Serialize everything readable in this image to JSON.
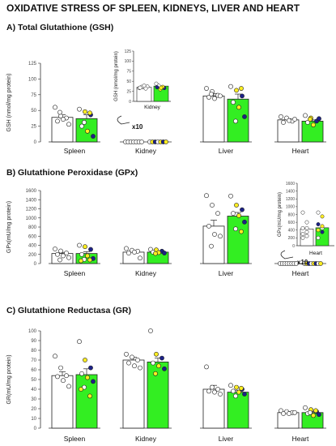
{
  "title": "OXIDATIVE STRESS OF SPLEEN, KIDNEYS, LIVER AND HEART",
  "colors": {
    "control_bar": "#ffffff",
    "treated_bar": "#33ee22",
    "dot_white": "#ffffff",
    "dot_yellow": "#ffee22",
    "dot_navy": "#1c2188",
    "axis": "#333333"
  },
  "inset_gsh": {
    "ylabel": "GSH (nmol/mg protein)",
    "yticks": [
      "0",
      "25",
      "50",
      "75",
      "100",
      "125"
    ],
    "category": "Kidney",
    "multiplier": "x10"
  },
  "inset_gpx": {
    "ylabel": "GPx(mU/mg protein)",
    "yticks": [
      "0",
      "200",
      "400",
      "600",
      "800",
      "1000",
      "1200",
      "1400",
      "1600"
    ],
    "category": "Heart",
    "multiplier": "x10"
  },
  "chart_data": [
    {
      "type": "bar",
      "title": "A) Total Glutathione (GSH)",
      "ylabel": "GSH (nmol/mg protein)",
      "ylim": [
        0,
        125
      ],
      "yticks": [
        "0",
        "25",
        "50",
        "75",
        "100",
        "125"
      ],
      "categories": [
        "Spleen",
        "Kidney",
        "Liver",
        "Heart"
      ],
      "series": [
        {
          "values": [
            39,
            3.5,
            73,
            35
          ],
          "errors": [
            4,
            0.3,
            4,
            2
          ],
          "points": [
            [
              55,
              41,
              38,
              33,
              36,
              28,
              47
            ],
            [
              3.3,
              3.5,
              3.7,
              3.6,
              3.2,
              3.4,
              3.9
            ],
            [
              85,
              80,
              74,
              71,
              69,
              73,
              76
            ],
            [
              40,
              38,
              33,
              31,
              34,
              36
            ]
          ]
        },
        {
          "values": [
            37,
            3.8,
            68,
            33
          ],
          "errors": [
            6,
            0.4,
            8,
            2
          ],
          "points": [
            [
              52,
              48,
              43,
              25,
              17,
              9,
              31,
              46
            ],
            [
              4.4,
              3.0,
              3.3,
              3.9,
              3.6,
              3.5,
              3.4
            ],
            [
              88,
              82,
              73,
              63,
              55,
              40,
              33,
              85
            ],
            [
              42,
              38,
              33,
              31,
              27,
              37,
              36
            ]
          ]
        }
      ]
    },
    {
      "type": "bar",
      "title": "B) Glutathione Peroxidase (GPx)",
      "ylabel": "GPx(mU/mg protein)",
      "ylim": [
        0,
        1600
      ],
      "yticks": [
        "0",
        "200",
        "400",
        "600",
        "800",
        "1000",
        "1200",
        "1400",
        "1600"
      ],
      "categories": [
        "Spleen",
        "Kidney",
        "Liver",
        "Heart"
      ],
      "series": [
        {
          "values": [
            220,
            250,
            820,
            43
          ],
          "errors": [
            25,
            20,
            130,
            8
          ],
          "points": [
            [
              320,
              275,
              230,
              200,
              170,
              130,
              80
            ],
            [
              330,
              290,
              270,
              230,
              250,
              120
            ],
            [
              1490,
              1280,
              1100,
              820,
              640,
              600,
              380
            ],
            [
              85,
              60,
              45,
              35,
              30,
              25,
              20,
              45
            ]
          ]
        },
        {
          "values": [
            220,
            250,
            1040,
            46
          ],
          "errors": [
            40,
            15,
            80,
            8
          ],
          "points": [
            [
              400,
              370,
              310,
              200,
              170,
              110,
              90,
              80,
              60
            ],
            [
              310,
              300,
              270,
              250,
              240,
              230,
              220
            ],
            [
              1480,
              1280,
              1180,
              1100,
              1050,
              910,
              760,
              700
            ],
            [
              85,
              75,
              55,
              45,
              40,
              35,
              20,
              50
            ]
          ]
        }
      ]
    },
    {
      "type": "bar",
      "title": "C) Glutathione Reductasa (GR)",
      "ylabel": "GR(mU/mg protein)",
      "ylim": [
        0,
        100
      ],
      "yticks": [
        "0",
        "10",
        "20",
        "30",
        "40",
        "50",
        "60",
        "70",
        "80",
        "90",
        "100"
      ],
      "categories": [
        "Spleen",
        "Kidney",
        "Liver",
        "Heart"
      ],
      "series": [
        {
          "values": [
            54,
            70,
            40,
            16
          ],
          "errors": [
            4,
            3,
            4,
            1
          ],
          "points": [
            [
              74,
              62,
              54,
              53,
              49,
              43
            ],
            [
              76,
              73,
              70,
              67,
              64,
              62
            ],
            [
              63,
              42,
              40,
              38,
              37,
              35
            ],
            [
              18,
              17,
              16,
              15,
              15,
              16
            ]
          ]
        },
        {
          "values": [
            55,
            68,
            37,
            16
          ],
          "errors": [
            6,
            4,
            2,
            1
          ],
          "points": [
            [
              89,
              70,
              62,
              56,
              52,
              48,
              42,
              33,
              40
            ],
            [
              100,
              76,
              72,
              67,
              64,
              61,
              56
            ],
            [
              44,
              42,
              40,
              38,
              37,
              35,
              33,
              41
            ],
            [
              21,
              19,
              17,
              15,
              13,
              14,
              16,
              18
            ]
          ]
        }
      ]
    }
  ]
}
